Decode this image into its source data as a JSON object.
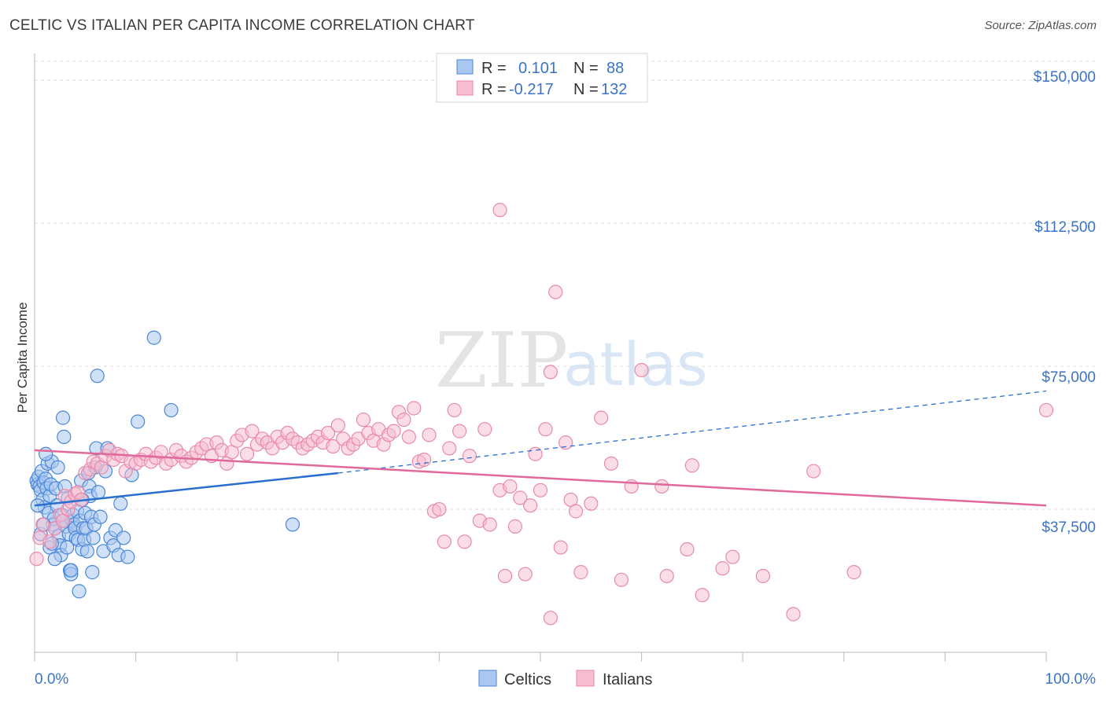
{
  "title": "CELTIC VS ITALIAN PER CAPITA INCOME CORRELATION CHART",
  "source": "Source: ZipAtlas.com",
  "watermark": {
    "zip": "ZIP",
    "atlas": "atlas"
  },
  "colors": {
    "celtics_fill": "#a9c8f0",
    "celtics_stroke": "#4a86d8",
    "celtics_line": "#2a6fd0",
    "italians_fill": "#f6bcd0",
    "italians_stroke": "#e98aab",
    "italians_line": "#e0699a",
    "axis_label": "#3b73c8",
    "grid": "#dddddd"
  },
  "chart_data": {
    "type": "scatter",
    "title": "CELTIC VS ITALIAN PER CAPITA INCOME CORRELATION CHART",
    "xlabel": "",
    "ylabel": "Per Capita Income",
    "xlim": [
      0,
      100
    ],
    "ylim": [
      0,
      155000
    ],
    "x_tick_labels": [
      "0.0%",
      "100.0%"
    ],
    "y_ticks": [
      37500,
      75000,
      112500,
      150000
    ],
    "y_tick_labels": [
      "$37,500",
      "$75,000",
      "$112,500",
      "$150,000"
    ],
    "grid": "horizontal dashed",
    "legend_top": [
      {
        "r_label": "R =",
        "r_value": "0.101",
        "n_label": "N =",
        "n_value": "88"
      },
      {
        "r_label": "R =",
        "r_value": "-0.217",
        "n_label": "N =",
        "n_value": "132"
      }
    ],
    "series": [
      {
        "name": "Celtics",
        "trend": {
          "x": [
            0,
            30
          ],
          "y": [
            38500,
            47000
          ],
          "dashed_to": [
            100,
            68500
          ]
        },
        "points": [
          [
            0.2,
            45000
          ],
          [
            0.3,
            44000
          ],
          [
            0.4,
            46000
          ],
          [
            0.5,
            43500
          ],
          [
            0.6,
            42500
          ],
          [
            0.7,
            47500
          ],
          [
            0.8,
            40000
          ],
          [
            0.9,
            44500
          ],
          [
            1.0,
            38000
          ],
          [
            1.1,
            45500
          ],
          [
            1.2,
            43000
          ],
          [
            1.3,
            49500
          ],
          [
            1.4,
            36500
          ],
          [
            1.5,
            41000
          ],
          [
            1.6,
            44000
          ],
          [
            1.7,
            50000
          ],
          [
            1.8,
            33500
          ],
          [
            1.9,
            35000
          ],
          [
            2.0,
            32500
          ],
          [
            2.1,
            43000
          ],
          [
            2.2,
            38500
          ],
          [
            2.3,
            48500
          ],
          [
            2.4,
            30500
          ],
          [
            2.5,
            28000
          ],
          [
            2.6,
            25500
          ],
          [
            2.7,
            36000
          ],
          [
            2.8,
            61500
          ],
          [
            2.9,
            56500
          ],
          [
            3.0,
            43500
          ],
          [
            3.1,
            33000
          ],
          [
            3.2,
            27500
          ],
          [
            3.3,
            40500
          ],
          [
            3.4,
            31000
          ],
          [
            3.5,
            21500
          ],
          [
            3.6,
            20500
          ],
          [
            3.7,
            34500
          ],
          [
            3.8,
            36000
          ],
          [
            3.9,
            33500
          ],
          [
            4.0,
            32500
          ],
          [
            4.1,
            30000
          ],
          [
            4.2,
            37000
          ],
          [
            4.3,
            29500
          ],
          [
            4.4,
            16000
          ],
          [
            4.5,
            34500
          ],
          [
            4.6,
            45000
          ],
          [
            4.7,
            27000
          ],
          [
            4.8,
            32500
          ],
          [
            4.9,
            29500
          ],
          [
            5.0,
            36500
          ],
          [
            5.1,
            32500
          ],
          [
            5.2,
            26500
          ],
          [
            5.3,
            47000
          ],
          [
            5.4,
            43500
          ],
          [
            5.5,
            41000
          ],
          [
            5.6,
            35500
          ],
          [
            5.7,
            21000
          ],
          [
            5.8,
            30000
          ],
          [
            5.9,
            33500
          ],
          [
            6.0,
            48500
          ],
          [
            6.1,
            53500
          ],
          [
            6.2,
            72500
          ],
          [
            6.3,
            42000
          ],
          [
            6.5,
            35500
          ],
          [
            6.8,
            26500
          ],
          [
            7.0,
            47500
          ],
          [
            7.2,
            53500
          ],
          [
            7.5,
            30000
          ],
          [
            7.8,
            28000
          ],
          [
            8.0,
            32000
          ],
          [
            8.3,
            25500
          ],
          [
            8.5,
            39000
          ],
          [
            8.8,
            30000
          ],
          [
            9.2,
            25000
          ],
          [
            9.6,
            46500
          ],
          [
            10.2,
            60500
          ],
          [
            11.8,
            82500
          ],
          [
            13.5,
            63500
          ],
          [
            25.5,
            33500
          ],
          [
            0.3,
            38500
          ],
          [
            0.6,
            31000
          ],
          [
            1.1,
            52000
          ],
          [
            1.5,
            27500
          ],
          [
            2.0,
            24500
          ],
          [
            2.8,
            34500
          ],
          [
            3.6,
            21500
          ],
          [
            4.7,
            40000
          ],
          [
            0.9,
            33500
          ],
          [
            1.7,
            28500
          ]
        ]
      },
      {
        "name": "Italians",
        "trend": {
          "x": [
            0,
            100
          ],
          "y": [
            53000,
            38500
          ]
        },
        "points": [
          [
            0.2,
            24500
          ],
          [
            0.5,
            30000
          ],
          [
            0.8,
            33500
          ],
          [
            1.5,
            29000
          ],
          [
            2.0,
            32500
          ],
          [
            2.5,
            36000
          ],
          [
            2.8,
            34500
          ],
          [
            3.0,
            41000
          ],
          [
            3.3,
            37500
          ],
          [
            3.6,
            39500
          ],
          [
            4.0,
            41500
          ],
          [
            4.3,
            42000
          ],
          [
            4.6,
            40000
          ],
          [
            5.0,
            47000
          ],
          [
            5.5,
            48000
          ],
          [
            5.8,
            50000
          ],
          [
            6.2,
            49500
          ],
          [
            6.6,
            48500
          ],
          [
            7.0,
            51500
          ],
          [
            7.4,
            53000
          ],
          [
            7.8,
            50500
          ],
          [
            8.2,
            52000
          ],
          [
            8.6,
            51500
          ],
          [
            9.0,
            47500
          ],
          [
            9.5,
            50000
          ],
          [
            10.0,
            49500
          ],
          [
            10.5,
            50500
          ],
          [
            11.0,
            52000
          ],
          [
            11.5,
            50000
          ],
          [
            12.0,
            51000
          ],
          [
            12.5,
            52500
          ],
          [
            13.0,
            49500
          ],
          [
            13.5,
            50500
          ],
          [
            14.0,
            53000
          ],
          [
            14.5,
            51500
          ],
          [
            15.0,
            50000
          ],
          [
            15.5,
            51000
          ],
          [
            16.0,
            52500
          ],
          [
            16.5,
            53500
          ],
          [
            17.0,
            54500
          ],
          [
            17.5,
            51500
          ],
          [
            18.0,
            55000
          ],
          [
            18.5,
            53000
          ],
          [
            19.0,
            49500
          ],
          [
            19.5,
            52500
          ],
          [
            20.0,
            55500
          ],
          [
            20.5,
            57000
          ],
          [
            21.0,
            52000
          ],
          [
            21.5,
            58000
          ],
          [
            22.0,
            54500
          ],
          [
            22.5,
            56000
          ],
          [
            23.0,
            55000
          ],
          [
            23.5,
            53500
          ],
          [
            24.0,
            56500
          ],
          [
            24.5,
            55000
          ],
          [
            25.0,
            57500
          ],
          [
            25.5,
            56000
          ],
          [
            26.0,
            55000
          ],
          [
            26.5,
            53500
          ],
          [
            27.0,
            54500
          ],
          [
            27.5,
            55500
          ],
          [
            28.0,
            56500
          ],
          [
            28.5,
            55000
          ],
          [
            29.0,
            57500
          ],
          [
            29.5,
            54000
          ],
          [
            30.0,
            59500
          ],
          [
            30.5,
            56000
          ],
          [
            31.0,
            53500
          ],
          [
            31.5,
            54500
          ],
          [
            32.0,
            56000
          ],
          [
            32.5,
            61000
          ],
          [
            33.0,
            57500
          ],
          [
            33.5,
            55500
          ],
          [
            34.0,
            58500
          ],
          [
            34.5,
            54500
          ],
          [
            35.0,
            57000
          ],
          [
            35.5,
            58000
          ],
          [
            36.0,
            63000
          ],
          [
            36.5,
            61000
          ],
          [
            37.0,
            56500
          ],
          [
            37.5,
            64000
          ],
          [
            38.0,
            50000
          ],
          [
            38.5,
            50500
          ],
          [
            39.0,
            57000
          ],
          [
            39.5,
            37000
          ],
          [
            40.0,
            37500
          ],
          [
            40.5,
            29000
          ],
          [
            41.0,
            53500
          ],
          [
            41.5,
            63500
          ],
          [
            42.0,
            58000
          ],
          [
            42.5,
            29000
          ],
          [
            43.0,
            51500
          ],
          [
            44.0,
            34500
          ],
          [
            44.5,
            58500
          ],
          [
            45.0,
            33500
          ],
          [
            46.0,
            42500
          ],
          [
            46.5,
            20000
          ],
          [
            47.0,
            43500
          ],
          [
            47.5,
            33000
          ],
          [
            48.0,
            40500
          ],
          [
            48.5,
            20500
          ],
          [
            49.0,
            38500
          ],
          [
            49.5,
            52000
          ],
          [
            50.0,
            42500
          ],
          [
            50.5,
            58500
          ],
          [
            51.0,
            9000
          ],
          [
            51.5,
            94500
          ],
          [
            52.0,
            27500
          ],
          [
            52.5,
            55000
          ],
          [
            53.0,
            40000
          ],
          [
            53.5,
            37000
          ],
          [
            54.0,
            21000
          ],
          [
            55.0,
            39000
          ],
          [
            56.0,
            61500
          ],
          [
            57.0,
            49500
          ],
          [
            58.0,
            19000
          ],
          [
            59.0,
            43500
          ],
          [
            60.0,
            74000
          ],
          [
            62.0,
            43500
          ],
          [
            62.5,
            20000
          ],
          [
            64.5,
            27000
          ],
          [
            65.0,
            49000
          ],
          [
            66.0,
            15000
          ],
          [
            68.0,
            22000
          ],
          [
            69.0,
            25000
          ],
          [
            72.0,
            20000
          ],
          [
            75.0,
            10000
          ],
          [
            77.0,
            47500
          ],
          [
            81.0,
            21000
          ],
          [
            100.0,
            63500
          ],
          [
            51.0,
            73500
          ],
          [
            46.0,
            116000
          ]
        ]
      }
    ]
  },
  "bottom_legend": [
    {
      "label": "Celtics"
    },
    {
      "label": "Italians"
    }
  ]
}
